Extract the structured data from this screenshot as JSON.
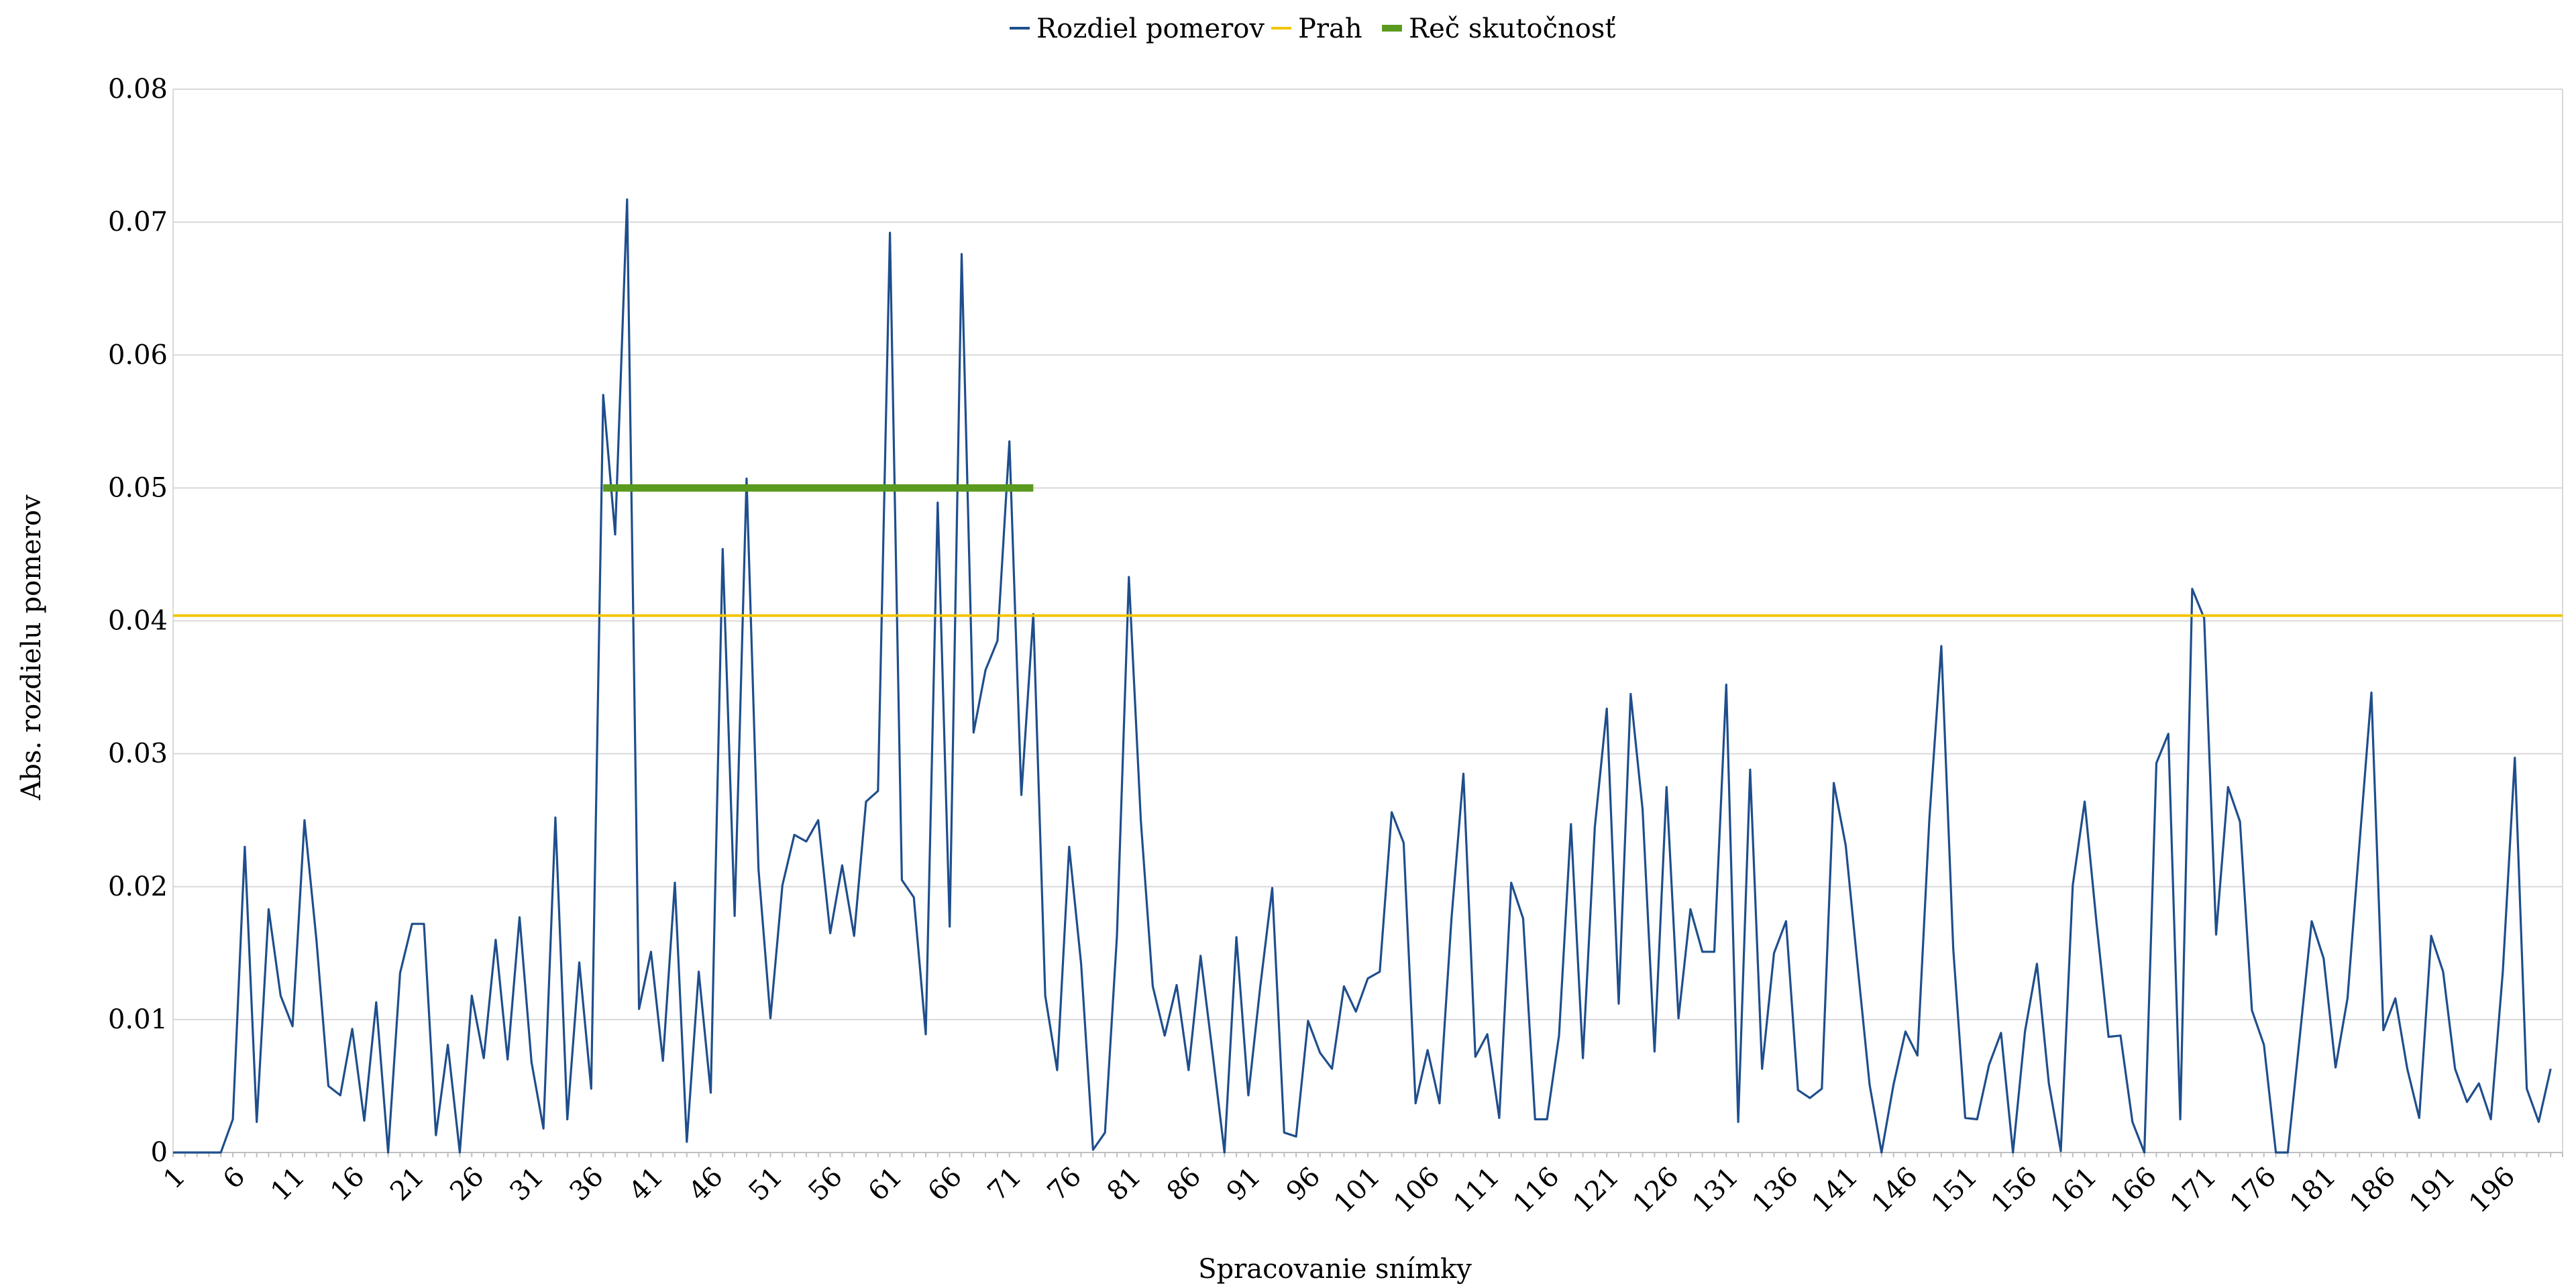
{
  "chart_data": {
    "type": "line",
    "title": "",
    "xlabel": "Spracovanie snímky",
    "ylabel": "Abs. rozdielu pomerov",
    "ylim": [
      0,
      0.08
    ],
    "yticks": [
      "0",
      "0.01",
      "0.02",
      "0.03",
      "0.04",
      "0.05",
      "0.06",
      "0.07",
      "0.08"
    ],
    "x_range": [
      1,
      201
    ],
    "xtick_values": [
      1,
      6,
      11,
      16,
      21,
      26,
      31,
      36,
      41,
      46,
      51,
      56,
      61,
      66,
      71,
      76,
      81,
      86,
      91,
      96,
      101,
      106,
      111,
      116,
      121,
      126,
      131,
      136,
      141,
      146,
      151,
      156,
      161,
      166,
      171,
      176,
      181,
      186,
      191,
      196
    ],
    "grid": true,
    "legend_position": "top-center",
    "series": [
      {
        "name": "Rozdiel pomerov",
        "color": "#1f4e8c",
        "values": [
          0,
          0,
          0,
          0,
          0,
          0.0025,
          0.023,
          0.0023,
          0.0183,
          0.0118,
          0.0095,
          0.025,
          0.016,
          0.005,
          0.0043,
          0.0093,
          0.0024,
          0.0113,
          0,
          0.0135,
          0.0172,
          0.0172,
          0.0013,
          0.0081,
          0,
          0.0118,
          0.0071,
          0.016,
          0.007,
          0.0177,
          0.0068,
          0.0018,
          0.0252,
          0.0025,
          0.0143,
          0.0048,
          0.057,
          0.0465,
          0.0717,
          0.0108,
          0.0151,
          0.0069,
          0.0203,
          0.0008,
          0.0136,
          0.0045,
          0.0454,
          0.0178,
          0.0507,
          0.0213,
          0.0101,
          0.0201,
          0.0239,
          0.0234,
          0.025,
          0.0165,
          0.0216,
          0.0163,
          0.0264,
          0.0272,
          0.0692,
          0.0205,
          0.0192,
          0.0089,
          0.0489,
          0.017,
          0.0676,
          0.0316,
          0.0363,
          0.0385,
          0.0535,
          0.0269,
          0.0405,
          0.0118,
          0.0062,
          0.023,
          0.0142,
          0.0002,
          0.0015,
          0.0163,
          0.0433,
          0.025,
          0.0125,
          0.0088,
          0.0126,
          0.0062,
          0.0148,
          0.0075,
          0,
          0.0162,
          0.0043,
          0.0125,
          0.0199,
          0.0015,
          0.0012,
          0.0099,
          0.0075,
          0.0063,
          0.0125,
          0.0106,
          0.0131,
          0.0136,
          0.0256,
          0.0233,
          0.0037,
          0.0077,
          0.0037,
          0.0176,
          0.0285,
          0.0072,
          0.0089,
          0.0026,
          0.0203,
          0.0176,
          0.0025,
          0.0025,
          0.0088,
          0.0247,
          0.0071,
          0.0245,
          0.0334,
          0.0112,
          0.0345,
          0.0258,
          0.0076,
          0.0275,
          0.0101,
          0.0183,
          0.0151,
          0.0151,
          0.0352,
          0.0023,
          0.0288,
          0.0063,
          0.015,
          0.0174,
          0.0047,
          0.0041,
          0.0048,
          0.0278,
          0.0231,
          0.014,
          0.0051,
          0,
          0.0051,
          0.0091,
          0.0073,
          0.0251,
          0.0381,
          0.0153,
          0.0026,
          0.0025,
          0.0066,
          0.009,
          0,
          0.0091,
          0.0142,
          0.0052,
          0.0001,
          0.0201,
          0.0264,
          0.0172,
          0.0087,
          0.0088,
          0.0023,
          0,
          0.0293,
          0.0315,
          0.0025,
          0.0424,
          0.0402,
          0.0164,
          0.0275,
          0.0249,
          0.0107,
          0.0081,
          0,
          0,
          0.0087,
          0.0174,
          0.0146,
          0.0064,
          0.0116,
          0.0232,
          0.0346,
          0.0092,
          0.0116,
          0.0063,
          0.0026,
          0.0163,
          0.0136,
          0.0063,
          0.0038,
          0.0052,
          0.0025,
          0.0136,
          0.0297,
          0.0048,
          0.0023,
          0.0063
        ]
      },
      {
        "name": "Prah",
        "color": "#f2c500",
        "x": [
          1,
          201
        ],
        "values": [
          0.0404,
          0.0404
        ]
      },
      {
        "name": "Reč skutočnosť",
        "color": "#5a9a1e",
        "x": [
          37,
          73
        ],
        "values": [
          0.05,
          0.05
        ]
      }
    ]
  }
}
